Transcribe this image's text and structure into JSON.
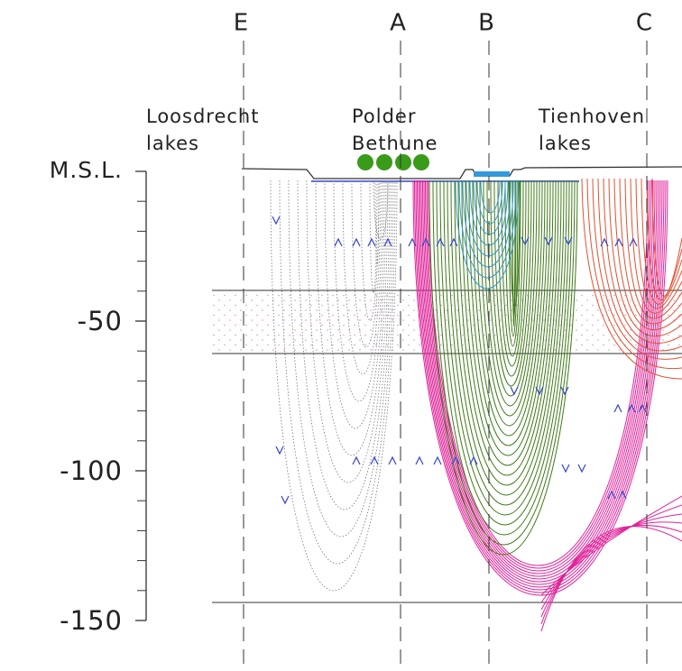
{
  "sections": [
    "E",
    "A",
    "B",
    "C"
  ],
  "places": [
    {
      "lines": [
        "Loosdrecht",
        "lakes"
      ]
    },
    {
      "lines": [
        "Polder",
        "Bethune"
      ]
    },
    {
      "lines": [
        "Tienhoven",
        "lakes"
      ]
    }
  ],
  "depth_axis": {
    "ylim": [
      0,
      -150
    ],
    "yticks": [
      {
        "value": 0,
        "label": "M.S.L."
      },
      -50,
      -100,
      -150
    ],
    "minor_yticks": [
      -10,
      -20,
      -30,
      -40,
      -60,
      -70,
      -80,
      -90,
      -110,
      -120,
      -130,
      -140
    ]
  }
}
